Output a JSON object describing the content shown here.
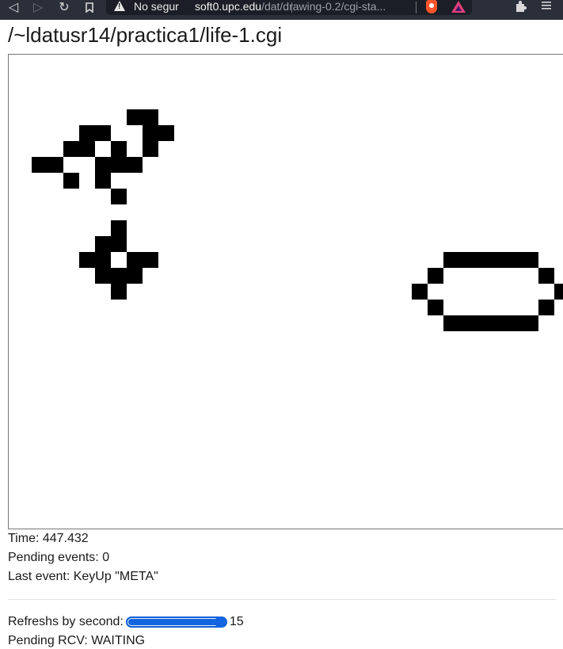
{
  "browser": {
    "security_label": "No segur",
    "url_host": "soft0.upc.edu",
    "url_path": "/dat/drawing-0.2/cgi-sta..."
  },
  "page": {
    "title": "/~ldatusr14/practica1/life-1.cgi"
  },
  "status": {
    "time": "Time: 447.432",
    "pending_events": "Pending events: 0",
    "last_event": "Last event: KeyUp \"META\""
  },
  "controls": {
    "refresh_label": "Refreshs by second:",
    "refresh_value": "15",
    "refresh_level": 1.0,
    "pending_rcv": "Pending RCV: WAITING"
  },
  "life_board": {
    "cell_color": "#000000",
    "live_cells": [
      [
        7,
        3
      ],
      [
        8,
        3
      ],
      [
        4,
        4
      ],
      [
        5,
        4
      ],
      [
        8,
        4
      ],
      [
        9,
        4
      ],
      [
        3,
        5
      ],
      [
        4,
        5
      ],
      [
        6,
        5
      ],
      [
        8,
        5
      ],
      [
        1,
        6
      ],
      [
        2,
        6
      ],
      [
        5,
        6
      ],
      [
        6,
        6
      ],
      [
        7,
        6
      ],
      [
        3,
        7
      ],
      [
        5,
        7
      ],
      [
        6,
        8
      ],
      [
        6,
        10
      ],
      [
        5,
        11
      ],
      [
        6,
        11
      ],
      [
        4,
        12
      ],
      [
        5,
        12
      ],
      [
        7,
        12
      ],
      [
        8,
        12
      ],
      [
        5,
        13
      ],
      [
        6,
        13
      ],
      [
        7,
        13
      ],
      [
        6,
        14
      ],
      [
        27,
        12
      ],
      [
        28,
        12
      ],
      [
        29,
        12
      ],
      [
        30,
        12
      ],
      [
        31,
        12
      ],
      [
        32,
        12
      ],
      [
        26,
        13
      ],
      [
        33,
        13
      ],
      [
        25,
        14
      ],
      [
        34,
        14
      ],
      [
        26,
        15
      ],
      [
        33,
        15
      ],
      [
        27,
        16
      ],
      [
        28,
        16
      ],
      [
        29,
        16
      ],
      [
        30,
        16
      ],
      [
        31,
        16
      ],
      [
        32,
        16
      ]
    ]
  }
}
